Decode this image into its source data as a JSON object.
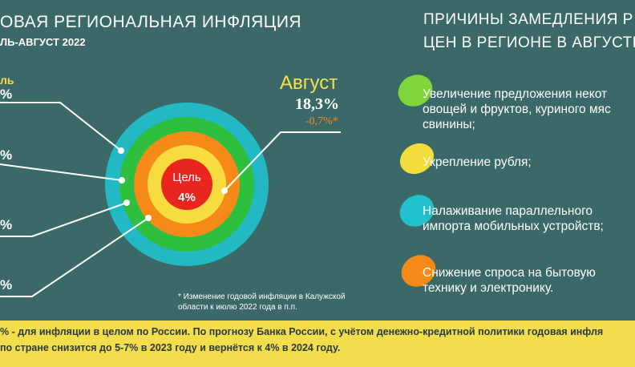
{
  "header": {
    "title": "ОВАЯ РЕГИОНАЛЬНАЯ ИНФЛЯЦИЯ",
    "period": "ЛЬ-АВГУСТ 2022"
  },
  "left_labels": [
    "ль",
    "%",
    "%",
    "%",
    "%"
  ],
  "august": {
    "label": "Август",
    "value": "18,3%",
    "change": "-0,7%*"
  },
  "target": {
    "label": "Цель",
    "value": "4%"
  },
  "footnote": [
    "* Изменение годовой инфляции в Калужской",
    "области к июлю 2022 года в п.п."
  ],
  "reasons_title": [
    "ПРИЧИНЫ ЗАМЕДЛЕНИЯ Р",
    "ЦЕН В РЕГИОНЕ В АВГУСТЕ"
  ],
  "reasons": [
    [
      "Увеличение предложения некот",
      "овощей и фруктов, куриного мяс",
      "свинины;"
    ],
    [
      "Укрепление рубля;"
    ],
    [
      "Налаживание параллельного",
      "импорта мобильных устройств;"
    ],
    [
      "Снижение спроса на бытовую",
      "технику и электронику."
    ]
  ],
  "note": [
    "% - для инфляции в целом по России. По прогнозу Банка России, с учётом денежно-кредитной политики годовая инфля",
    "по стране  снизится до 5-7%  в 2023 году и вернётся к 4% в 2024 году."
  ]
}
